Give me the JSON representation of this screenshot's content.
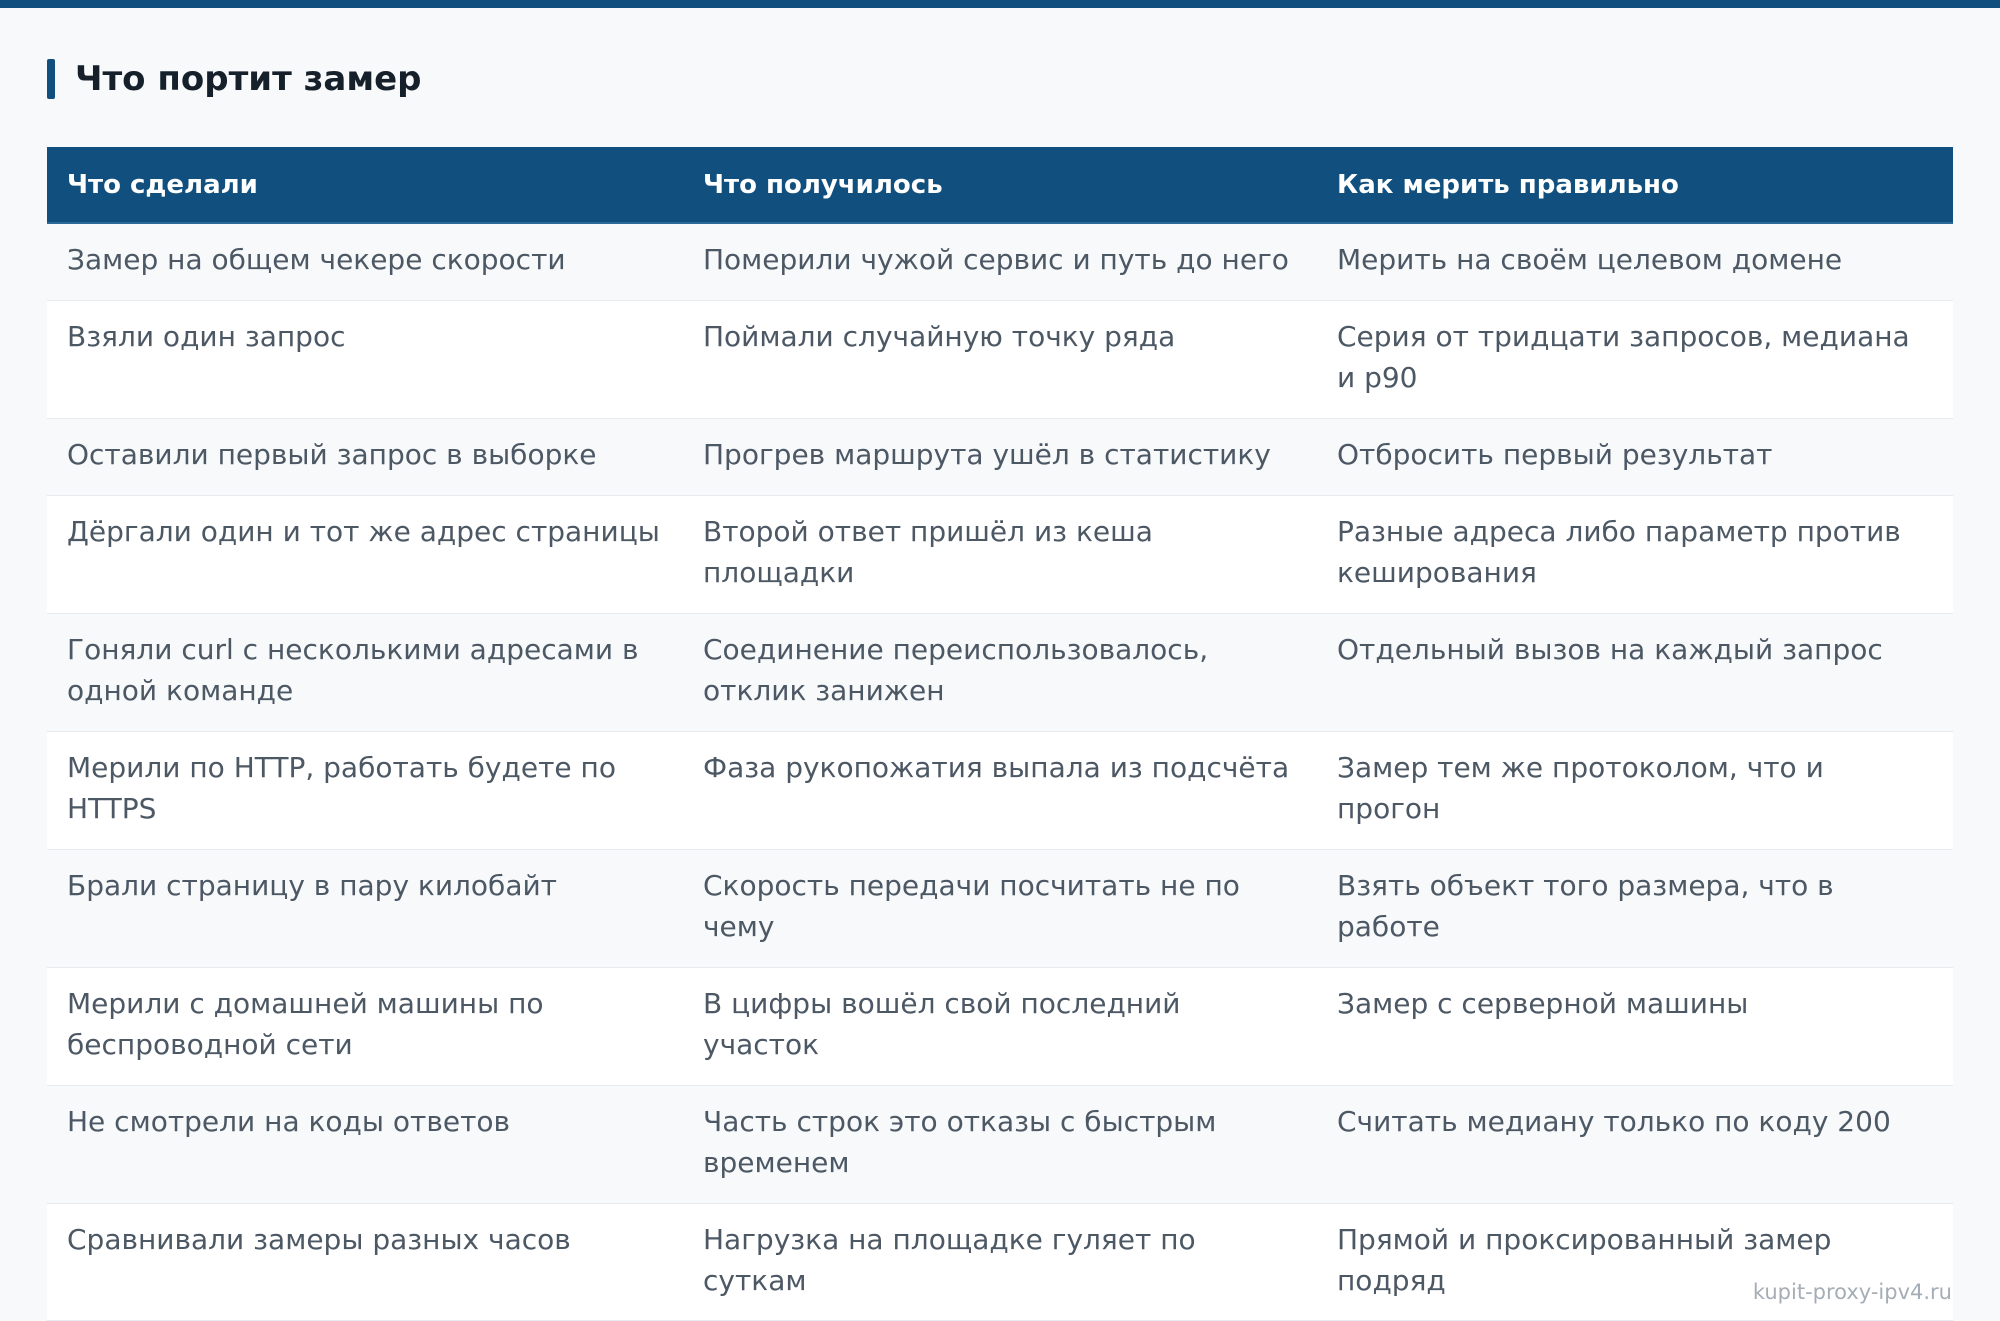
{
  "heading": "Что портит замер",
  "table": {
    "headers": [
      "Что сделали",
      "Что получилось",
      "Как мерить правильно"
    ],
    "rows": [
      [
        "Замер на общем чекере скорости",
        "Померили чужой сервис и путь до него",
        "Мерить на своём целевом домене"
      ],
      [
        "Взяли один запрос",
        "Поймали случайную точку ряда",
        "Серия от тридцати запросов, медиана и p90"
      ],
      [
        "Оставили первый запрос в выборке",
        "Прогрев маршрута ушёл в статистику",
        "Отбросить первый результат"
      ],
      [
        "Дёргали один и тот же адрес страницы",
        "Второй ответ пришёл из кеша площадки",
        "Разные адреса либо параметр против кеширования"
      ],
      [
        "Гоняли curl с несколькими адресами в одной команде",
        "Соединение переиспользовалось, отклик занижен",
        "Отдельный вызов на каждый запрос"
      ],
      [
        "Мерили по HTTP, работать будете по HTTPS",
        "Фаза рукопожатия выпала из подсчёта",
        "Замер тем же протоколом, что и прогон"
      ],
      [
        "Брали страницу в пару килобайт",
        "Скорость передачи посчитать не по чему",
        "Взять объект того размера, что в работе"
      ],
      [
        "Мерили с домашней машины по беспроводной сети",
        "В цифры вошёл свой последний участок",
        "Замер с серверной машины"
      ],
      [
        "Не смотрели на коды ответов",
        "Часть строк это отказы с быстрым временем",
        "Считать медиану только по коду 200"
      ],
      [
        "Сравнивали замеры разных часов",
        "Нагрузка на площадке гуляет по суткам",
        "Прямой и проксированный замер подряд"
      ]
    ]
  },
  "watermark": "kupit-proxy-ipv4.ru"
}
